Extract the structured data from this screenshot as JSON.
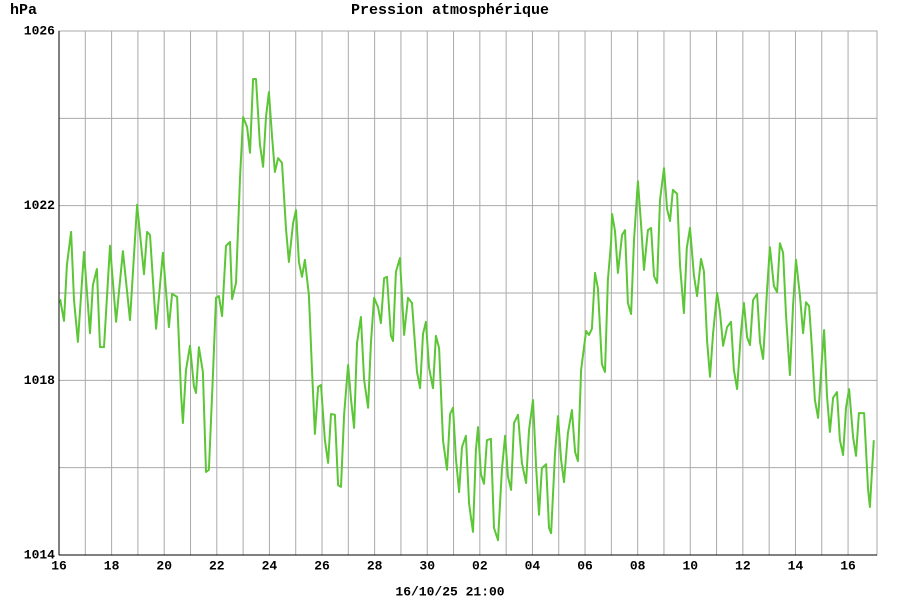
{
  "chart_data": {
    "type": "line",
    "title": "Pression atmosphérique",
    "ylabel": "hPa",
    "xlabel": "16/10/25 21:00",
    "color": "#5cc637",
    "grid": true,
    "xlim": [
      0,
      31.1
    ],
    "xticks": [
      {
        "value": 0,
        "label": "16"
      },
      {
        "value": 2,
        "label": "18"
      },
      {
        "value": 4,
        "label": "20"
      },
      {
        "value": 6,
        "label": "22"
      },
      {
        "value": 8,
        "label": "24"
      },
      {
        "value": 10,
        "label": "26"
      },
      {
        "value": 12,
        "label": "28"
      },
      {
        "value": 14,
        "label": "30"
      },
      {
        "value": 16,
        "label": "02"
      },
      {
        "value": 18,
        "label": "04"
      },
      {
        "value": 20,
        "label": "06"
      },
      {
        "value": 22,
        "label": "08"
      },
      {
        "value": 24,
        "label": "10"
      },
      {
        "value": 26,
        "label": "12"
      },
      {
        "value": 28,
        "label": "14"
      },
      {
        "value": 30,
        "label": "16"
      }
    ],
    "x_minor_ticks": [
      1,
      3,
      5,
      7,
      9,
      11,
      13,
      15,
      17,
      19,
      21,
      23,
      25,
      27,
      29
    ],
    "ylim": [
      1014,
      1026
    ],
    "yticks": [
      1014,
      1018,
      1022,
      1026
    ],
    "y_minor_ticks": [
      1016,
      1020,
      1024
    ],
    "x": [
      0.04,
      0.19,
      0.3,
      0.46,
      0.57,
      0.72,
      0.95,
      1.18,
      1.29,
      1.44,
      1.56,
      1.71,
      1.94,
      2.17,
      2.43,
      2.7,
      2.97,
      3.23,
      3.35,
      3.46,
      3.69,
      3.95,
      4.18,
      4.3,
      4.49,
      4.64,
      4.71,
      4.83,
      4.98,
      5.13,
      5.21,
      5.32,
      5.47,
      5.59,
      5.7,
      5.86,
      5.97,
      6.08,
      6.2,
      6.35,
      6.5,
      6.58,
      6.73,
      6.88,
      7.0,
      7.15,
      7.26,
      7.38,
      7.49,
      7.64,
      7.76,
      7.87,
      7.98,
      8.1,
      8.21,
      8.33,
      8.48,
      8.63,
      8.74,
      8.9,
      9.01,
      9.12,
      9.24,
      9.35,
      9.5,
      9.62,
      9.73,
      9.85,
      9.96,
      10.11,
      10.23,
      10.34,
      10.49,
      10.61,
      10.72,
      10.84,
      10.99,
      11.1,
      11.22,
      11.33,
      11.48,
      11.6,
      11.75,
      11.86,
      11.98,
      12.13,
      12.24,
      12.36,
      12.47,
      12.62,
      12.7,
      12.81,
      12.96,
      13.12,
      13.27,
      13.42,
      13.61,
      13.73,
      13.84,
      13.95,
      14.07,
      14.22,
      14.33,
      14.45,
      14.6,
      14.75,
      14.87,
      14.98,
      15.09,
      15.21,
      15.32,
      15.47,
      15.59,
      15.74,
      15.85,
      15.93,
      16.04,
      16.16,
      16.27,
      16.42,
      16.54,
      16.69,
      16.84,
      16.96,
      17.07,
      17.19,
      17.3,
      17.45,
      17.6,
      17.76,
      17.87,
      18.02,
      18.14,
      18.25,
      18.36,
      18.52,
      18.63,
      18.71,
      18.86,
      18.97,
      19.09,
      19.2,
      19.35,
      19.5,
      19.62,
      19.73,
      19.85,
      20.04,
      20.15,
      20.26,
      20.38,
      20.49,
      20.64,
      20.76,
      20.87,
      20.99,
      21.03,
      21.14,
      21.25,
      21.41,
      21.52,
      21.63,
      21.75,
      21.86,
      22.01,
      22.13,
      22.24,
      22.39,
      22.51,
      22.62,
      22.74,
      22.85,
      23.0,
      23.12,
      23.23,
      23.34,
      23.5,
      23.61,
      23.76,
      23.87,
      23.99,
      24.14,
      24.26,
      24.41,
      24.52,
      24.64,
      24.75,
      24.87,
      25.02,
      25.13,
      25.25,
      25.4,
      25.55,
      25.66,
      25.78,
      25.93,
      26.04,
      26.16,
      26.27,
      26.39,
      26.54,
      26.65,
      26.77,
      26.92,
      27.03,
      27.18,
      27.3,
      27.41,
      27.53,
      27.64,
      27.79,
      27.91,
      28.02,
      28.17,
      28.29,
      28.4,
      28.52,
      28.63,
      28.74,
      28.86,
      29.01,
      29.09,
      29.2,
      29.31,
      29.43,
      29.58,
      29.69,
      29.81,
      29.92,
      30.04,
      30.19,
      30.3,
      30.41,
      30.61,
      30.76,
      30.83,
      30.98
    ],
    "values": [
      1019.86,
      1019.36,
      1020.64,
      1021.4,
      1019.84,
      1018.88,
      1020.94,
      1019.08,
      1020.18,
      1020.55,
      1018.76,
      1018.76,
      1021.08,
      1019.34,
      1020.96,
      1019.38,
      1022.02,
      1020.43,
      1021.4,
      1021.33,
      1019.18,
      1020.92,
      1019.22,
      1019.98,
      1019.91,
      1017.71,
      1017.02,
      1018.24,
      1018.79,
      1017.87,
      1017.71,
      1018.76,
      1018.19,
      1015.9,
      1015.95,
      1018.21,
      1019.89,
      1019.93,
      1019.47,
      1021.08,
      1021.17,
      1019.86,
      1020.23,
      1022.63,
      1024.03,
      1023.8,
      1023.21,
      1024.9,
      1024.9,
      1023.41,
      1022.89,
      1024.03,
      1024.6,
      1023.6,
      1022.77,
      1023.09,
      1022.98,
      1021.47,
      1020.71,
      1021.6,
      1021.9,
      1020.71,
      1020.37,
      1020.76,
      1019.95,
      1018.24,
      1016.77,
      1017.85,
      1017.89,
      1016.63,
      1016.11,
      1017.23,
      1017.21,
      1015.6,
      1015.56,
      1017.21,
      1018.35,
      1017.57,
      1016.91,
      1018.85,
      1019.45,
      1018.01,
      1017.37,
      1018.85,
      1019.89,
      1019.68,
      1019.31,
      1020.34,
      1020.37,
      1019.02,
      1018.9,
      1020.48,
      1020.8,
      1019.04,
      1019.89,
      1019.77,
      1018.19,
      1017.82,
      1019.06,
      1019.34,
      1018.28,
      1017.82,
      1019.02,
      1018.74,
      1016.63,
      1015.95,
      1017.23,
      1017.37,
      1016.22,
      1015.44,
      1016.47,
      1016.73,
      1015.17,
      1014.53,
      1016.4,
      1016.93,
      1015.85,
      1015.63,
      1016.63,
      1016.66,
      1014.62,
      1014.34,
      1015.95,
      1016.73,
      1015.79,
      1015.49,
      1017.02,
      1017.21,
      1016.11,
      1015.65,
      1016.86,
      1017.55,
      1016.02,
      1014.92,
      1015.99,
      1016.08,
      1014.62,
      1014.5,
      1016.36,
      1017.18,
      1016.18,
      1015.67,
      1016.79,
      1017.32,
      1016.36,
      1016.15,
      1018.24,
      1019.13,
      1019.04,
      1019.18,
      1020.46,
      1020.11,
      1018.37,
      1018.19,
      1020.3,
      1021.17,
      1021.81,
      1021.42,
      1020.46,
      1021.33,
      1021.44,
      1019.77,
      1019.52,
      1021.21,
      1022.56,
      1021.56,
      1020.53,
      1021.44,
      1021.49,
      1020.39,
      1020.23,
      1022.13,
      1022.86,
      1021.92,
      1021.65,
      1022.36,
      1022.27,
      1020.64,
      1019.54,
      1021.03,
      1021.49,
      1020.41,
      1019.93,
      1020.78,
      1020.5,
      1018.9,
      1018.08,
      1019.08,
      1020.0,
      1019.56,
      1018.79,
      1019.22,
      1019.34,
      1018.24,
      1017.8,
      1019.11,
      1019.77,
      1018.99,
      1018.81,
      1019.84,
      1019.98,
      1018.88,
      1018.49,
      1020.09,
      1021.05,
      1020.16,
      1020.02,
      1021.14,
      1020.92,
      1019.5,
      1018.12,
      1019.73,
      1020.76,
      1019.95,
      1019.08,
      1019.79,
      1019.7,
      1018.72,
      1017.55,
      1017.14,
      1018.51,
      1019.15,
      1017.64,
      1016.82,
      1017.6,
      1017.73,
      1016.63,
      1016.29,
      1017.37,
      1017.8,
      1016.7,
      1016.27,
      1017.25,
      1017.25,
      1015.49,
      1015.1,
      1016.63
    ]
  }
}
